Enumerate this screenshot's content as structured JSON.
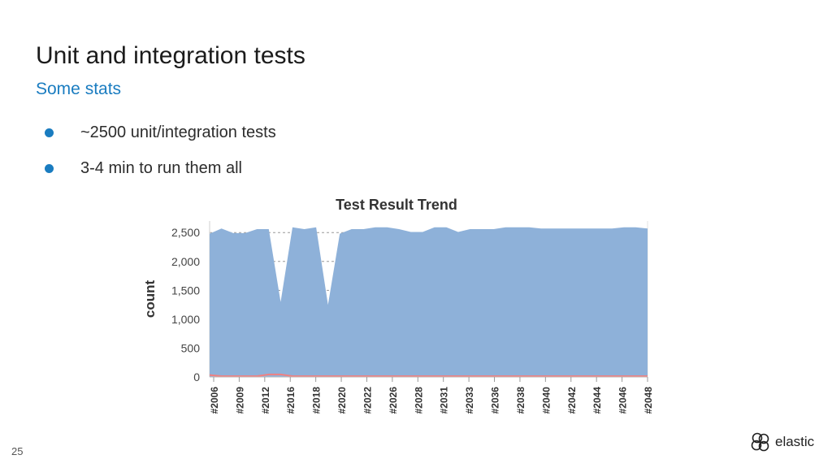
{
  "slide": {
    "title": "Unit and integration tests",
    "subtitle": "Some stats",
    "bullets": [
      "~2500 unit/integration tests",
      "3-4 min to run them all"
    ],
    "page_number": "25",
    "brand": "elastic"
  },
  "colors": {
    "accent": "#1a7cc0",
    "area": "#8eb1d9",
    "failed": "#f08080"
  },
  "chart_data": {
    "type": "area",
    "title": "Test Result Trend",
    "ylabel": "count",
    "xlabel": "",
    "ylim": [
      0,
      2700
    ],
    "yticks": [
      0,
      500,
      1000,
      1500,
      2000,
      2500
    ],
    "ytick_labels": [
      "0",
      "500",
      "1,000",
      "1,500",
      "2,000",
      "2,500"
    ],
    "grid": true,
    "xtick_labels": [
      "#2006",
      "#2009",
      "#2012",
      "#2016",
      "#2018",
      "#2020",
      "#2022",
      "#2026",
      "#2028",
      "#2031",
      "#2033",
      "#2036",
      "#2038",
      "#2040",
      "#2042",
      "#2044",
      "#2046",
      "#2048"
    ],
    "series": [
      {
        "values": [
          2480,
          2570,
          2490,
          2490,
          2560,
          2560,
          1300,
          2590,
          2560,
          2590,
          1250,
          2480,
          2560,
          2560,
          2590,
          2590,
          2560,
          2510,
          2510,
          2590,
          2590,
          2510,
          2560,
          2560,
          2560,
          2590,
          2590,
          2590,
          2570,
          2570,
          2570,
          2570,
          2570,
          2570,
          2570,
          2590,
          2590,
          2570
        ]
      },
      {
        "values": [
          20,
          0,
          0,
          0,
          0,
          30,
          30,
          0,
          0,
          0,
          0,
          0,
          0,
          0,
          0,
          0,
          0,
          0,
          0,
          0,
          0,
          0,
          0,
          0,
          0,
          0,
          0,
          0,
          0,
          0,
          0,
          0,
          0,
          0,
          0,
          0,
          0,
          0
        ]
      }
    ]
  }
}
